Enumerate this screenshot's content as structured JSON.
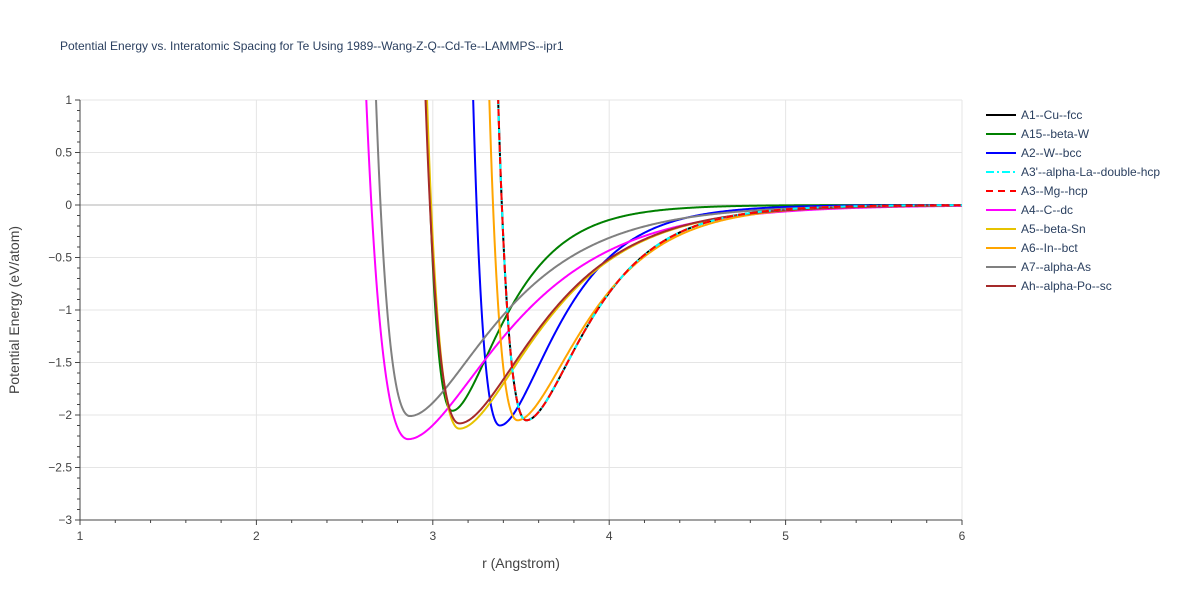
{
  "chart_data": {
    "type": "line",
    "title": "Potential Energy vs. Interatomic Spacing for Te Using 1989--Wang-Z-Q--Cd-Te--LAMMPS--ipr1",
    "xlabel": "r (Angstrom)",
    "ylabel": "Potential Energy (eV/atom)",
    "xlim": [
      1,
      6
    ],
    "ylim": [
      -3,
      1
    ],
    "xticks": [
      "1",
      "2",
      "3",
      "4",
      "5",
      "6"
    ],
    "yticks": [
      "1",
      "0.5",
      "0",
      "−0.5",
      "−1",
      "−1.5",
      "−2",
      "−2.5",
      "−3"
    ],
    "grid": true,
    "legend_position": "right",
    "series": [
      {
        "name": "A1--Cu--fcc",
        "color": "#000000",
        "dash": "solid",
        "r0": 3.53,
        "e0": -2.05,
        "left_width": 0.2,
        "right_width": 0.32
      },
      {
        "name": "A15--beta-W",
        "color": "#008000",
        "dash": "solid",
        "r0": 3.11,
        "e0": -1.96,
        "left_width": 0.18,
        "right_width": 0.27
      },
      {
        "name": "A2--W--bcc",
        "color": "#0000ff",
        "dash": "solid",
        "r0": 3.38,
        "e0": -2.1,
        "left_width": 0.19,
        "right_width": 0.3
      },
      {
        "name": "A3'--alpha-La--double-hcp",
        "color": "#00ffff",
        "dash": "dashdot",
        "r0": 3.53,
        "e0": -2.05,
        "left_width": 0.2,
        "right_width": 0.32
      },
      {
        "name": "A3--Mg--hcp",
        "color": "#ff0000",
        "dash": "dash",
        "r0": 3.53,
        "e0": -2.05,
        "left_width": 0.2,
        "right_width": 0.32
      },
      {
        "name": "A4--C--dc",
        "color": "#ff00ff",
        "dash": "solid",
        "r0": 2.86,
        "e0": -2.23,
        "left_width": 0.3,
        "right_width": 0.5
      },
      {
        "name": "A5--beta-Sn",
        "color": "#e6c300",
        "dash": "solid",
        "r0": 3.15,
        "e0": -2.13,
        "left_width": 0.23,
        "right_width": 0.42
      },
      {
        "name": "A6--In--bct",
        "color": "#ffa500",
        "dash": "solid",
        "r0": 3.48,
        "e0": -2.05,
        "left_width": 0.2,
        "right_width": 0.35
      },
      {
        "name": "A7--alpha-As",
        "color": "#808080",
        "dash": "solid",
        "r0": 2.87,
        "e0": -2.01,
        "left_width": 0.24,
        "right_width": 0.45
      },
      {
        "name": "Ah--alpha-Po--sc",
        "color": "#a52a2a",
        "dash": "solid",
        "r0": 3.15,
        "e0": -2.08,
        "left_width": 0.24,
        "right_width": 0.42
      }
    ]
  }
}
